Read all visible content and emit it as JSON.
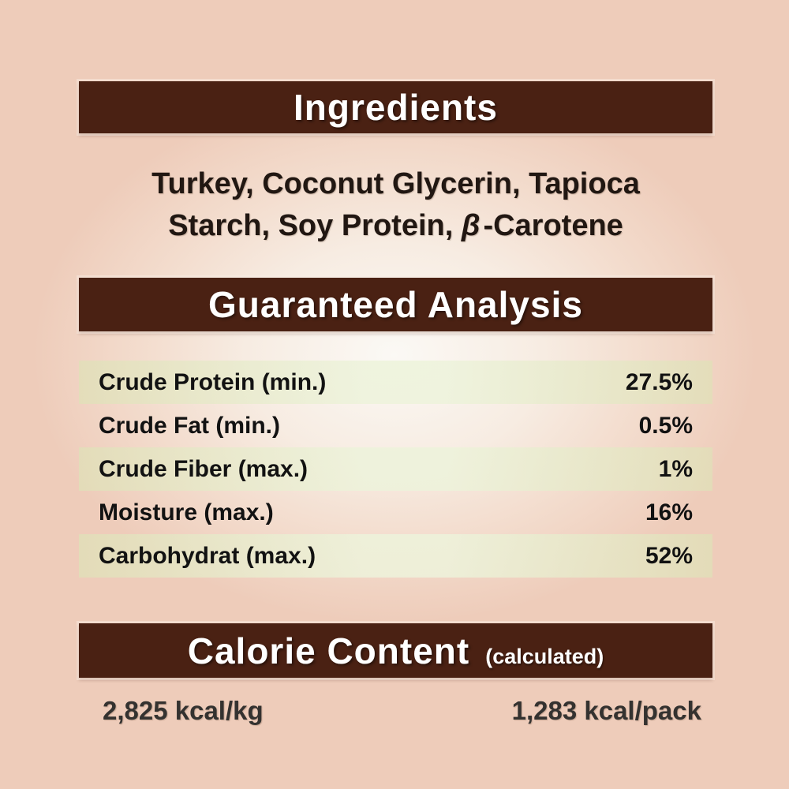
{
  "colors": {
    "background_edge": "#eeccba",
    "background_center": "#fbf9f5",
    "bar_brown": "#4a2113",
    "row_green": "#e8e5cd",
    "header_text": "#ffffff",
    "body_text": "#211712"
  },
  "ingredients": {
    "title": "Ingredients",
    "line1": "Turkey, Coconut Glycerin, Tapioca",
    "line2_prefix": "Starch, Soy Protein, ",
    "line2_beta": "β",
    "line2_suffix": "-Carotene"
  },
  "analysis": {
    "title": "Guaranteed Analysis",
    "rows": [
      {
        "label": "Crude Protein (min.)",
        "value": "27.5%"
      },
      {
        "label": "Crude Fat (min.)",
        "value": "0.5%"
      },
      {
        "label": "Crude Fiber (max.)",
        "value": "1%"
      },
      {
        "label": "Moisture (max.)",
        "value": "16%"
      },
      {
        "label": "Carbohydrat (max.)",
        "value": "52%"
      }
    ]
  },
  "calories": {
    "title": "Calorie Content",
    "subtitle": "(calculated)",
    "per_kg": "2,825 kcal/kg",
    "per_pack": "1,283 kcal/pack"
  }
}
